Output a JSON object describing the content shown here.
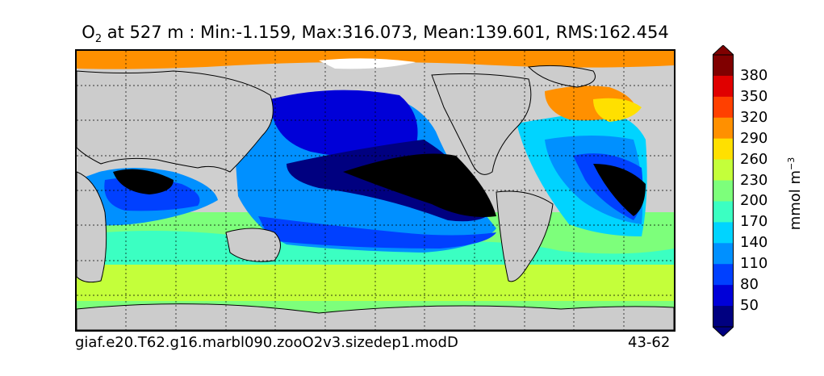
{
  "title": {
    "species_main": "O",
    "species_sub": "2",
    "rest": " at 527 m : Min:-1.159, Max:316.073, Mean:139.601, RMS:162.454"
  },
  "footer": {
    "case_name": "giaf.e20.T62.g16.marbl090.zooO2v3.sizedep1.modD",
    "years": "43-62"
  },
  "colorbar": {
    "unit_main": "mmol m",
    "unit_exp": "−3",
    "levels": [
      "380",
      "350",
      "320",
      "290",
      "260",
      "230",
      "200",
      "170",
      "140",
      "110",
      "80",
      "50"
    ],
    "colors": [
      "#800000",
      "#e00000",
      "#ff4000",
      "#ff9000",
      "#ffe000",
      "#c4ff3a",
      "#7dff7b",
      "#3bffc2",
      "#00d4ff",
      "#0090ff",
      "#0040ff",
      "#0000d8",
      "#000080"
    ]
  },
  "map": {
    "land_color": "#cccccc",
    "missing_color": "#ffffff",
    "omz_color": "#000000"
  }
}
